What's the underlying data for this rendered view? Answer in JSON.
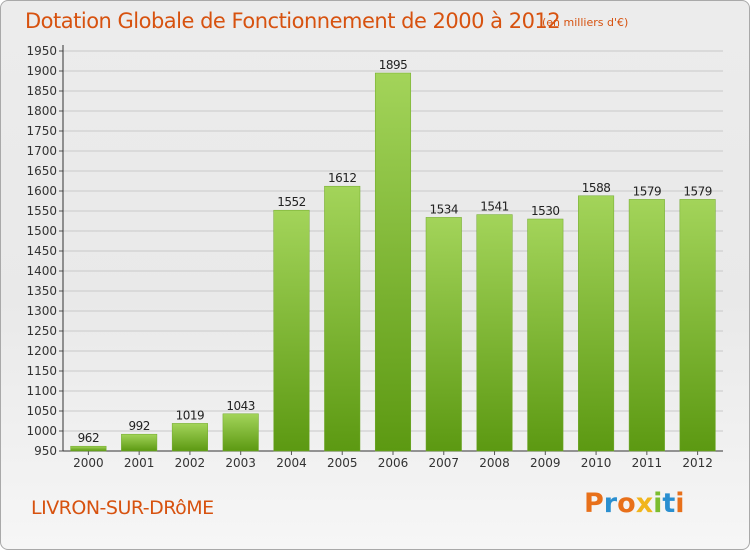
{
  "header": {
    "title": "Dotation Globale de Fonctionnement de 2000 à 2012",
    "subtitle": "(en milliers d'€)"
  },
  "footer": {
    "commune": "LIVRON-SUR-DRôME",
    "logo_text": "Proxiti"
  },
  "colors": {
    "title": "#d7520f",
    "bar_light": "#9fd155",
    "bar_dark": "#5e9a12",
    "grid": "#c8c8c8"
  },
  "chart_data": {
    "type": "bar",
    "categories": [
      "2000",
      "2001",
      "2002",
      "2003",
      "2004",
      "2005",
      "2006",
      "2007",
      "2008",
      "2009",
      "2010",
      "2011",
      "2012"
    ],
    "values": [
      962,
      992,
      1019,
      1043,
      1552,
      1612,
      1895,
      1534,
      1541,
      1530,
      1588,
      1579,
      1579
    ],
    "ylim": [
      950,
      1950
    ],
    "ytick_step": 50,
    "grid": true,
    "data_labels": true
  }
}
